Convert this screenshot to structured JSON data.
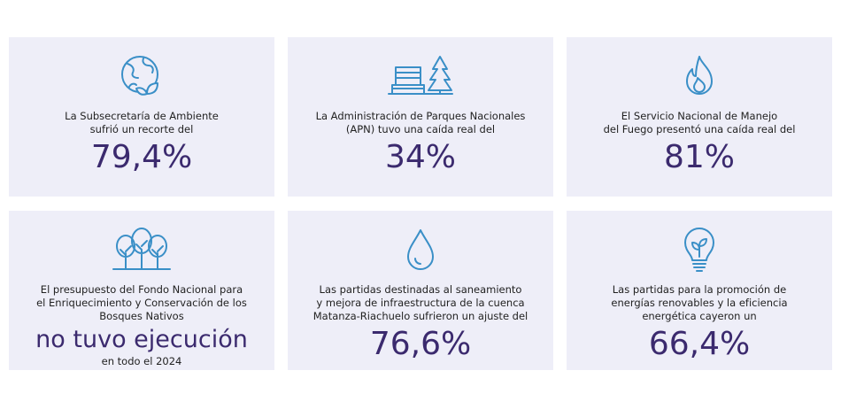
{
  "cards": [
    {
      "lines": [
        "La Subsecretaría de Ambiente",
        "sufrió un recorte del"
      ],
      "value": "79,4%"
    },
    {
      "lines": [
        "La Administración de Parques Nacionales",
        "(APN) tuvo una caída real del"
      ],
      "value": "34%"
    },
    {
      "lines": [
        "El Servicio Nacional de Manejo",
        "del Fuego presentó una caída real del"
      ],
      "value": "81%"
    },
    {
      "lines": [
        "El presupuesto del Fondo Nacional para",
        "el Enriquecimiento y Conservación de los",
        "Bosques Nativos"
      ],
      "value": "no tuvo ejecución",
      "note": "en todo el 2024"
    },
    {
      "lines": [
        "Las partidas destinadas al saneamiento",
        "y mejora de infraestructura de la cuenca",
        "Matanza-Riachuelo sufrieron un ajuste del"
      ],
      "value": "76,6%"
    },
    {
      "lines": [
        "Las partidas para la promoción de",
        "energías renovables y la eficiencia",
        "energética cayeron un"
      ],
      "value": "66,4%"
    }
  ]
}
